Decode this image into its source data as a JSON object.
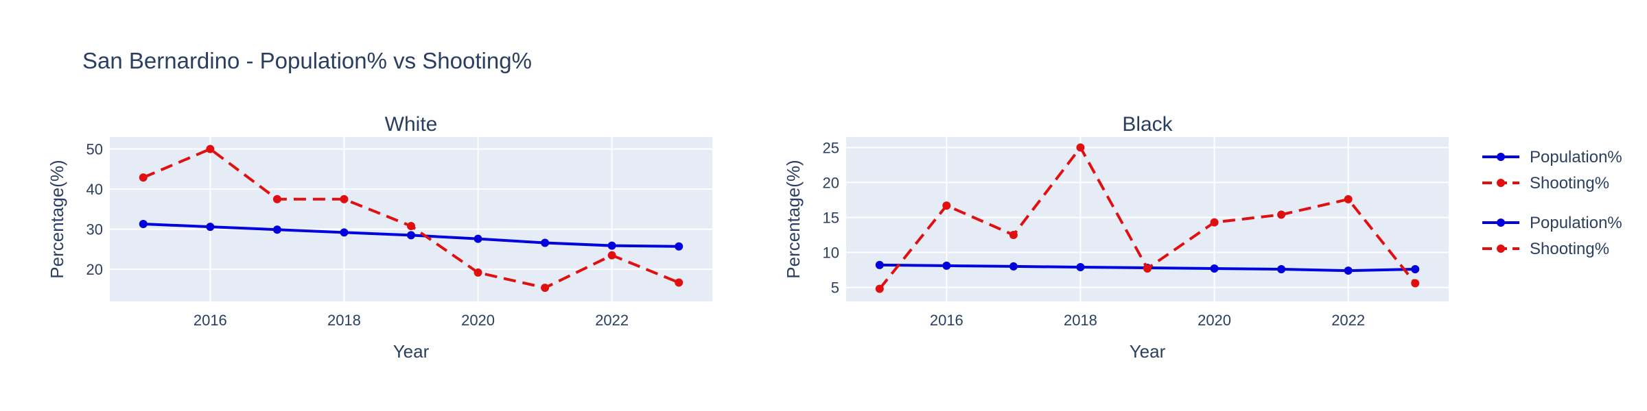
{
  "chart_data": {
    "type": "line",
    "title": "San Bernardino - Population% vs Shooting%",
    "legend_placement": "right",
    "grid": true,
    "x": [
      2015,
      2016,
      2017,
      2018,
      2019,
      2020,
      2021,
      2022,
      2023
    ],
    "subplots": [
      {
        "title": "White",
        "xlabel": "Year",
        "ylabel": "Percentage(%)",
        "xlim": [
          2014.5,
          2023.5
        ],
        "ylim": [
          12,
          53
        ],
        "xticks": [
          2016,
          2018,
          2020,
          2022
        ],
        "yticks": [
          20,
          30,
          40,
          50
        ],
        "series": [
          {
            "name": "Population%",
            "color": "#0000dd",
            "dash": "solid",
            "values": [
              31.3,
              30.6,
              29.9,
              29.2,
              28.5,
              27.6,
              26.6,
              25.9,
              25.7
            ]
          },
          {
            "name": "Shooting%",
            "color": "#e01010",
            "dash": "dash",
            "values": [
              42.9,
              50.0,
              37.5,
              37.5,
              30.8,
              19.2,
              15.4,
              23.5,
              16.7
            ]
          }
        ]
      },
      {
        "title": "Black",
        "xlabel": "Year",
        "ylabel": "Percentage(%)",
        "xlim": [
          2014.5,
          2023.5
        ],
        "ylim": [
          3,
          26.5
        ],
        "xticks": [
          2016,
          2018,
          2020,
          2022
        ],
        "yticks": [
          5,
          10,
          15,
          20,
          25
        ],
        "series": [
          {
            "name": "Population%",
            "color": "#0000dd",
            "dash": "solid",
            "values": [
              8.2,
              8.1,
              8.0,
              7.9,
              7.8,
              7.7,
              7.6,
              7.4,
              7.6
            ]
          },
          {
            "name": "Shooting%",
            "color": "#e01010",
            "dash": "dash",
            "values": [
              4.8,
              16.7,
              12.5,
              25.0,
              7.7,
              14.3,
              15.4,
              17.6,
              5.6
            ]
          }
        ]
      }
    ],
    "legend": [
      {
        "name": "Population%",
        "color": "#0000dd",
        "dash": "solid"
      },
      {
        "name": "Shooting%",
        "color": "#e01010",
        "dash": "dash"
      },
      {
        "name": "Population%",
        "color": "#0000dd",
        "dash": "solid"
      },
      {
        "name": "Shooting%",
        "color": "#e01010",
        "dash": "dash"
      }
    ]
  }
}
